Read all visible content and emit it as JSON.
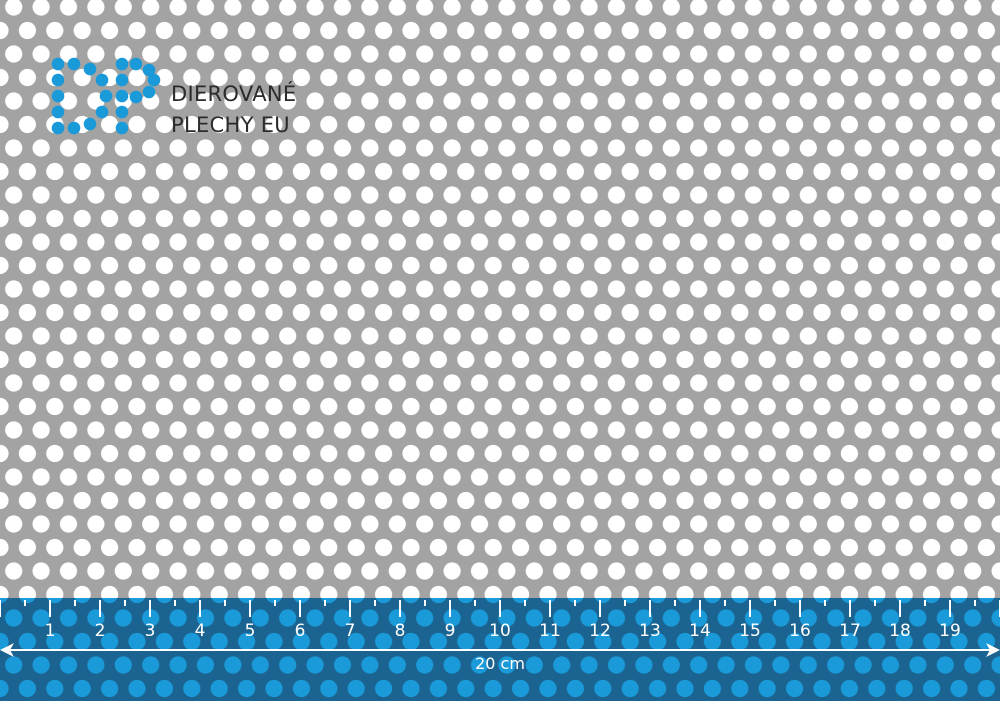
{
  "brand": {
    "line1": "DIEROVANÉ",
    "line2": "PLECHY EU"
  },
  "ruler": {
    "numbers": [
      "1",
      "2",
      "3",
      "4",
      "5",
      "6",
      "7",
      "8",
      "9",
      "10",
      "11",
      "12",
      "13",
      "14",
      "15",
      "16",
      "17",
      "18",
      "19"
    ],
    "length_label": "20 cm"
  },
  "colors": {
    "sheet": "#a3a3a3",
    "hole": "#ffffff",
    "logo": "#1a9ad8",
    "ruler_band": "#1b6491",
    "ruler_hole": "#1a9ad8",
    "brand_text": "#2b2b2b"
  }
}
